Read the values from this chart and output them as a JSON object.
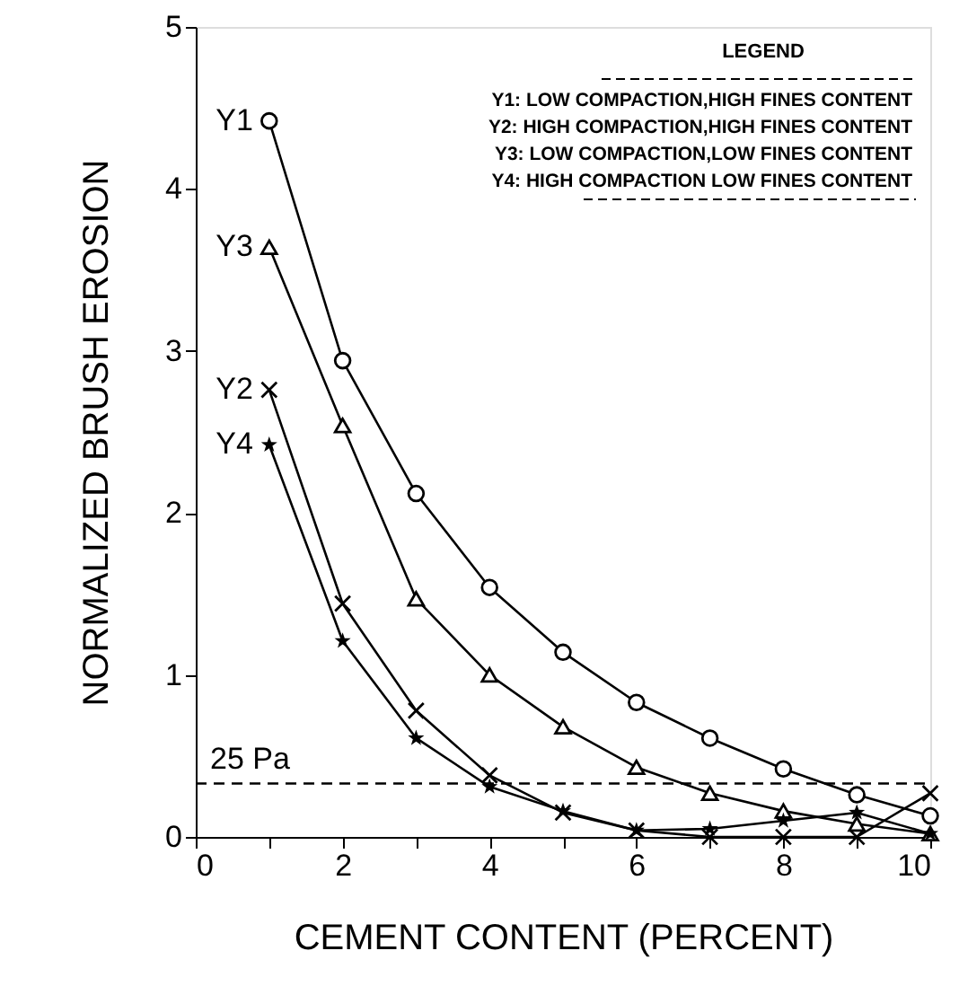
{
  "chart_data": {
    "type": "line",
    "xlabel": "CEMENT CONTENT (PERCENT)",
    "ylabel": "NORMALIZED BRUSH EROSION",
    "legend_title": "LEGEND",
    "annotations": [
      "Y1: LOW COMPACTION,HIGH FINES CONTENT",
      "Y2: HIGH COMPACTION,HIGH FINES CONTENT",
      "Y3: LOW COMPACTION,LOW FINES CONTENT",
      "Y4: HIGH COMPACTION LOW FINES CONTENT"
    ],
    "x": [
      1,
      2,
      3,
      4,
      5,
      6,
      7,
      8,
      9,
      10
    ],
    "series": [
      {
        "name": "Y1",
        "color": "#000000",
        "marker": "circle",
        "values": [
          4.42,
          2.94,
          2.12,
          1.54,
          1.14,
          0.83,
          0.61,
          0.42,
          0.26,
          0.13
        ]
      },
      {
        "name": "Y3",
        "color": "#000000",
        "marker": "triangle",
        "values": [
          3.64,
          2.54,
          1.47,
          1.0,
          0.68,
          0.43,
          0.27,
          0.16,
          0.08,
          0.02
        ]
      },
      {
        "name": "Y2",
        "color": "#000000",
        "marker": "cross",
        "values": [
          2.76,
          1.44,
          0.78,
          0.38,
          0.15,
          0.04,
          0.0,
          0.0,
          0.0,
          0.27
        ]
      },
      {
        "name": "Y4",
        "color": "#000000",
        "marker": "star",
        "values": [
          2.42,
          1.21,
          0.61,
          0.31,
          0.16,
          0.04,
          0.05,
          0.1,
          0.15,
          0.02
        ]
      }
    ],
    "xlim": [
      0,
      10
    ],
    "ylim": [
      0,
      5
    ],
    "xticks": [
      0,
      {
        "value": 1,
        "label": null
      },
      2,
      {
        "value": 3,
        "label": null
      },
      4,
      {
        "value": 5,
        "label": null
      },
      6,
      {
        "value": 7,
        "label": null
      },
      8,
      {
        "value": 9,
        "label": null
      },
      10
    ],
    "yticks": [
      0,
      1,
      2,
      3,
      4,
      5
    ],
    "ref_lines": [
      {
        "axis": "y",
        "value": 0.33,
        "label": "25 Pa",
        "line_style": "dashed",
        "color": "#000000"
      }
    ],
    "grid": false,
    "line_style": "solid"
  }
}
